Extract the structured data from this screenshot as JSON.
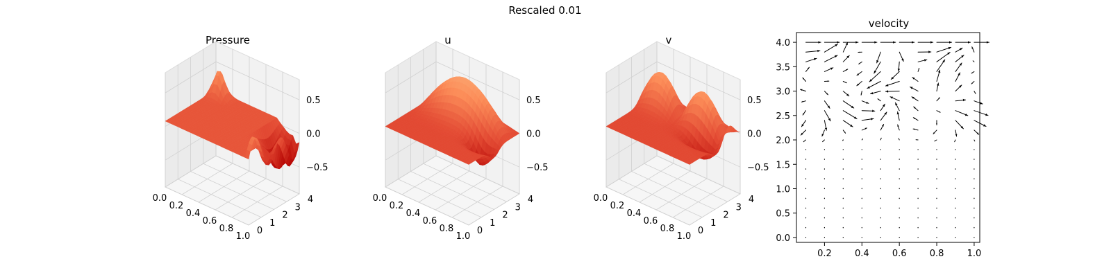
{
  "figure": {
    "suptitle": "Rescaled 0.01"
  },
  "chart_data": [
    {
      "type": "surface3d",
      "title": "Pressure",
      "x_ticks": [
        "0.0",
        "0.2",
        "0.4",
        "0.6",
        "0.8",
        "1.0"
      ],
      "y_ticks": [
        "0",
        "1",
        "2",
        "3",
        "4"
      ],
      "z_ticks": [
        "0.5",
        "0.0",
        "−0.5"
      ],
      "xlim": [
        0,
        1
      ],
      "ylim": [
        0,
        4
      ],
      "zlim": [
        -0.9,
        0.8
      ],
      "colormap": "OrRd_r",
      "colors": [
        "#fff7ec",
        "#fdbb84",
        "#fc8d59",
        "#e34a33",
        "#b30000",
        "#7f0000"
      ]
    },
    {
      "type": "surface3d",
      "title": "u",
      "x_ticks": [
        "0.0",
        "0.2",
        "0.4",
        "0.6",
        "0.8",
        "1.0"
      ],
      "y_ticks": [
        "0",
        "1",
        "2",
        "3",
        "4"
      ],
      "z_ticks": [
        "0.5",
        "0.0",
        "−0.5"
      ],
      "xlim": [
        0,
        1
      ],
      "ylim": [
        0,
        4
      ],
      "zlim": [
        -0.9,
        0.8
      ],
      "colormap": "OrRd_r",
      "colors": [
        "#fff7ec",
        "#fdbb84",
        "#fc8d59",
        "#e34a33",
        "#b30000",
        "#7f0000"
      ]
    },
    {
      "type": "surface3d",
      "title": "v",
      "x_ticks": [
        "0.0",
        "0.2",
        "0.4",
        "0.6",
        "0.8",
        "1.0"
      ],
      "y_ticks": [
        "0",
        "1",
        "2",
        "3",
        "4"
      ],
      "z_ticks": [
        "0.5",
        "0.0",
        "−0.5"
      ],
      "xlim": [
        0,
        1
      ],
      "ylim": [
        0,
        4
      ],
      "zlim": [
        -0.9,
        0.8
      ],
      "colormap": "OrRd_r",
      "colors": [
        "#fff7ec",
        "#fdbb84",
        "#fc8d59",
        "#e34a33",
        "#b30000",
        "#7f0000"
      ]
    },
    {
      "type": "quiver",
      "title": "velocity",
      "x_ticks": [
        "0.2",
        "0.4",
        "0.6",
        "0.8",
        "1.0"
      ],
      "y_ticks": [
        "0.0",
        "0.5",
        "1.0",
        "1.5",
        "2.0",
        "2.5",
        "3.0",
        "3.5",
        "4.0"
      ],
      "xlim": [
        0.05,
        1.03
      ],
      "ylim": [
        -0.1,
        4.2
      ],
      "columns_x": [
        0.1,
        0.2,
        0.3,
        0.4,
        0.5,
        0.6,
        0.7,
        0.8,
        0.9,
        1.0
      ],
      "rows_y": [
        0.0,
        0.2,
        0.4,
        0.6,
        0.8,
        1.0,
        1.2,
        1.4,
        1.6,
        1.8,
        2.0,
        2.2,
        2.4,
        2.6,
        2.8,
        3.0,
        3.2,
        3.4,
        3.6,
        3.8,
        4.0
      ],
      "arrow_color": "#000000"
    }
  ]
}
